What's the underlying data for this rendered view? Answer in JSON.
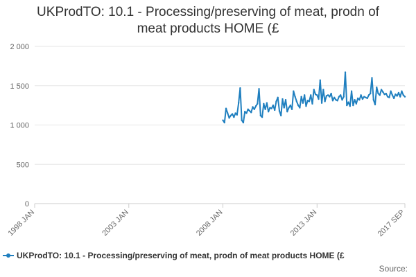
{
  "title": {
    "line1": "UKProdTO: 10.1 - Processing/preserving of meat, prodn of",
    "line2": "meat products HOME (£"
  },
  "legend": {
    "label": "UKProdTO: 10.1 - Processing/preserving of meat, prodn of meat products HOME (£"
  },
  "source": "Source:",
  "colors": {
    "series": "#1f7fbf",
    "grid": "#e6e6e6",
    "axis": "#cccccc"
  },
  "chart_data": {
    "type": "line",
    "title": "UKProdTO: 10.1 - Processing/preserving of meat, prodn of meat products HOME (£",
    "xlabel": "",
    "ylabel": "",
    "x_range": [
      "1998-01",
      "2017-09"
    ],
    "x_ticks": [
      "1998 JAN",
      "2003 JAN",
      "2008 JAN",
      "2013 JAN",
      "2017 SEP"
    ],
    "y_ticks": [
      "0",
      "500",
      "1 000",
      "1 500",
      "2 000"
    ],
    "ylim": [
      0,
      2000
    ],
    "grid": "horizontal",
    "legend_position": "bottom",
    "series": [
      {
        "name": "UKProdTO: 10.1 - Processing/preserving of meat, prodn of meat products HOME (£",
        "x": [
          "2008-01",
          "2008-02",
          "2008-03",
          "2008-04",
          "2008-05",
          "2008-06",
          "2008-07",
          "2008-08",
          "2008-09",
          "2008-10",
          "2008-11",
          "2008-12",
          "2009-01",
          "2009-02",
          "2009-03",
          "2009-04",
          "2009-05",
          "2009-06",
          "2009-07",
          "2009-08",
          "2009-09",
          "2009-10",
          "2009-11",
          "2009-12",
          "2010-01",
          "2010-02",
          "2010-03",
          "2010-04",
          "2010-05",
          "2010-06",
          "2010-07",
          "2010-08",
          "2010-09",
          "2010-10",
          "2010-11",
          "2010-12",
          "2011-01",
          "2011-02",
          "2011-03",
          "2011-04",
          "2011-05",
          "2011-06",
          "2011-07",
          "2011-08",
          "2011-09",
          "2011-10",
          "2011-11",
          "2011-12",
          "2012-01",
          "2012-02",
          "2012-03",
          "2012-04",
          "2012-05",
          "2012-06",
          "2012-07",
          "2012-08",
          "2012-09",
          "2012-10",
          "2012-11",
          "2012-12",
          "2013-01",
          "2013-02",
          "2013-03",
          "2013-04",
          "2013-05",
          "2013-06",
          "2013-07",
          "2013-08",
          "2013-09",
          "2013-10",
          "2013-11",
          "2013-12",
          "2014-01",
          "2014-02",
          "2014-03",
          "2014-04",
          "2014-05",
          "2014-06",
          "2014-07",
          "2014-08",
          "2014-09",
          "2014-10",
          "2014-11",
          "2014-12",
          "2015-01",
          "2015-02",
          "2015-03",
          "2015-04",
          "2015-05",
          "2015-06",
          "2015-07",
          "2015-08",
          "2015-09",
          "2015-10",
          "2015-11",
          "2015-12",
          "2016-01",
          "2016-02",
          "2016-03",
          "2016-04",
          "2016-05",
          "2016-06",
          "2016-07",
          "2016-08",
          "2016-09",
          "2016-10",
          "2016-11",
          "2016-12",
          "2017-01",
          "2017-02",
          "2017-03",
          "2017-04",
          "2017-05",
          "2017-06",
          "2017-07",
          "2017-08",
          "2017-09"
        ],
        "values": [
          1060,
          1030,
          1210,
          1150,
          1090,
          1120,
          1140,
          1100,
          1150,
          1130,
          1280,
          1470,
          1060,
          1030,
          1170,
          1150,
          1200,
          1180,
          1160,
          1230,
          1200,
          1240,
          1270,
          1460,
          1120,
          1100,
          1270,
          1200,
          1280,
          1170,
          1220,
          1210,
          1250,
          1190,
          1300,
          1350,
          1180,
          1120,
          1330,
          1220,
          1320,
          1170,
          1220,
          1250,
          1200,
          1430,
          1360,
          1300,
          1250,
          1220,
          1360,
          1280,
          1380,
          1240,
          1310,
          1300,
          1380,
          1270,
          1450,
          1390,
          1380,
          1330,
          1570,
          1280,
          1450,
          1300,
          1370,
          1380,
          1360,
          1400,
          1310,
          1350,
          1320,
          1310,
          1360,
          1380,
          1320,
          1360,
          1670,
          1250,
          1290,
          1240,
          1430,
          1250,
          1320,
          1270,
          1340,
          1320,
          1380,
          1330,
          1360,
          1350,
          1340,
          1380,
          1400,
          1600,
          1320,
          1260,
          1480,
          1400,
          1380,
          1450,
          1420,
          1390,
          1400,
          1360,
          1350,
          1430,
          1380,
          1340,
          1390,
          1370,
          1410,
          1360,
          1430,
          1380,
          1360
        ]
      }
    ]
  }
}
